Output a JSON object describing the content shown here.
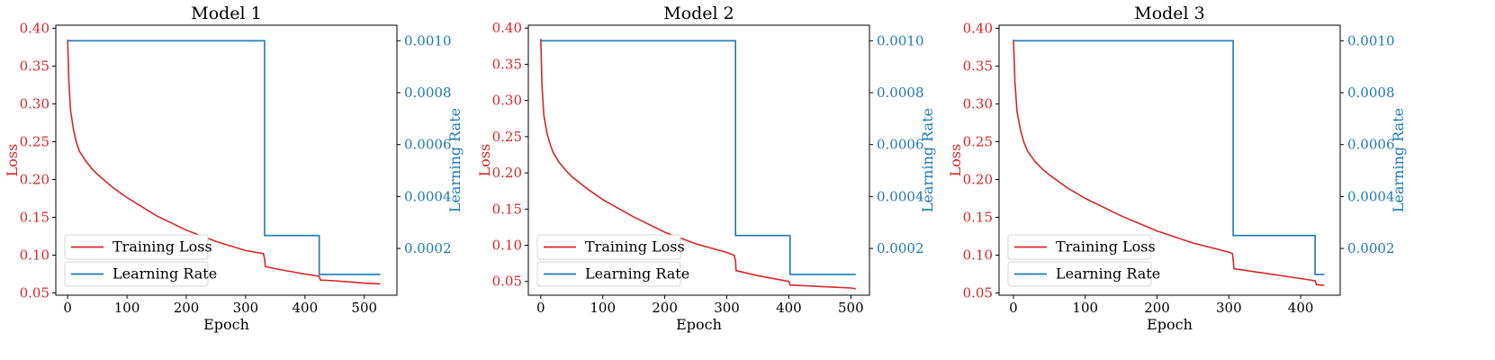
{
  "colors": {
    "loss": "#d62728",
    "lr": "#1f77b4"
  },
  "chart_data": [
    {
      "type": "line",
      "title": "Model 1",
      "xlabel": "Epoch",
      "ylabel": "Loss",
      "y2label": "Learning Rate",
      "xlim": [
        -20,
        555
      ],
      "ylim": [
        0.047,
        0.404
      ],
      "y2lim": [
        2e-05,
        0.00106
      ],
      "xticks": [
        0,
        100,
        200,
        300,
        400,
        500
      ],
      "yticks": [
        "0.05",
        "0.10",
        "0.15",
        "0.20",
        "0.25",
        "0.30",
        "0.35",
        "0.40"
      ],
      "y2ticks": [
        "0.0002",
        "0.0004",
        "0.0006",
        "0.0008",
        "0.0010"
      ],
      "legend": [
        "Training Loss",
        "Learning Rate"
      ],
      "legend_position": "lower-left",
      "series": [
        {
          "name": "Training Loss",
          "axis": "left",
          "x": [
            0,
            2,
            5,
            10,
            15,
            20,
            30,
            40,
            50,
            75,
            100,
            150,
            200,
            250,
            300,
            330,
            332,
            333,
            350,
            400,
            424,
            426,
            450,
            500,
            527
          ],
          "y": [
            0.385,
            0.33,
            0.29,
            0.265,
            0.248,
            0.237,
            0.225,
            0.215,
            0.207,
            0.19,
            0.176,
            0.152,
            0.133,
            0.118,
            0.106,
            0.102,
            0.095,
            0.085,
            0.082,
            0.075,
            0.072,
            0.067,
            0.066,
            0.063,
            0.062
          ]
        },
        {
          "name": "Learning Rate",
          "axis": "right",
          "step": true,
          "x": [
            0,
            332,
            332,
            424,
            424,
            527
          ],
          "y": [
            0.001,
            0.001,
            0.00025,
            0.00025,
            0.0001,
            0.0001
          ]
        }
      ]
    },
    {
      "type": "line",
      "title": "Model 2",
      "xlabel": "Epoch",
      "ylabel": "Loss",
      "y2label": "Learning Rate",
      "xlim": [
        -20,
        530
      ],
      "ylim": [
        0.031,
        0.404
      ],
      "y2lim": [
        2e-05,
        0.00106
      ],
      "xticks": [
        0,
        100,
        200,
        300,
        400,
        500
      ],
      "yticks": [
        "0.05",
        "0.10",
        "0.15",
        "0.20",
        "0.25",
        "0.30",
        "0.35",
        "0.40"
      ],
      "y2ticks": [
        "0.0002",
        "0.0004",
        "0.0006",
        "0.0008",
        "0.0010"
      ],
      "legend": [
        "Training Loss",
        "Learning Rate"
      ],
      "legend_position": "lower-left",
      "series": [
        {
          "name": "Training Loss",
          "axis": "left",
          "x": [
            0,
            2,
            5,
            10,
            15,
            20,
            30,
            40,
            50,
            75,
            100,
            150,
            200,
            250,
            300,
            312,
            314,
            315,
            350,
            400,
            402,
            450,
            500,
            508
          ],
          "y": [
            0.385,
            0.32,
            0.28,
            0.255,
            0.24,
            0.228,
            0.214,
            0.204,
            0.195,
            0.178,
            0.163,
            0.139,
            0.118,
            0.102,
            0.09,
            0.086,
            0.078,
            0.065,
            0.058,
            0.05,
            0.045,
            0.043,
            0.041,
            0.04
          ]
        },
        {
          "name": "Learning Rate",
          "axis": "right",
          "step": true,
          "x": [
            0,
            314,
            314,
            402,
            402,
            508
          ],
          "y": [
            0.001,
            0.001,
            0.00025,
            0.00025,
            0.0001,
            0.0001
          ]
        }
      ]
    },
    {
      "type": "line",
      "title": "Model 3",
      "xlabel": "Epoch",
      "ylabel": "Loss",
      "y2label": "Learning Rate",
      "xlim": [
        -20,
        455
      ],
      "ylim": [
        0.047,
        0.404
      ],
      "y2lim": [
        2e-05,
        0.00106
      ],
      "xticks": [
        0,
        100,
        200,
        300,
        400
      ],
      "yticks": [
        "0.05",
        "0.10",
        "0.15",
        "0.20",
        "0.25",
        "0.30",
        "0.35",
        "0.40"
      ],
      "y2ticks": [
        "0.0002",
        "0.0004",
        "0.0006",
        "0.0008",
        "0.0010"
      ],
      "legend": [
        "Training Loss",
        "Learning Rate"
      ],
      "legend_position": "lower-left",
      "series": [
        {
          "name": "Training Loss",
          "axis": "left",
          "x": [
            0,
            2,
            5,
            10,
            15,
            20,
            30,
            40,
            50,
            75,
            100,
            150,
            200,
            250,
            300,
            305,
            306,
            307,
            350,
            400,
            420,
            422,
            433
          ],
          "y": [
            0.385,
            0.33,
            0.29,
            0.265,
            0.248,
            0.237,
            0.224,
            0.214,
            0.206,
            0.189,
            0.175,
            0.152,
            0.132,
            0.116,
            0.104,
            0.102,
            0.094,
            0.082,
            0.076,
            0.069,
            0.066,
            0.061,
            0.06
          ]
        },
        {
          "name": "Learning Rate",
          "axis": "right",
          "step": true,
          "x": [
            0,
            306,
            306,
            420,
            420,
            433
          ],
          "y": [
            0.001,
            0.001,
            0.00025,
            0.00025,
            0.0001,
            0.0001
          ]
        }
      ]
    }
  ]
}
